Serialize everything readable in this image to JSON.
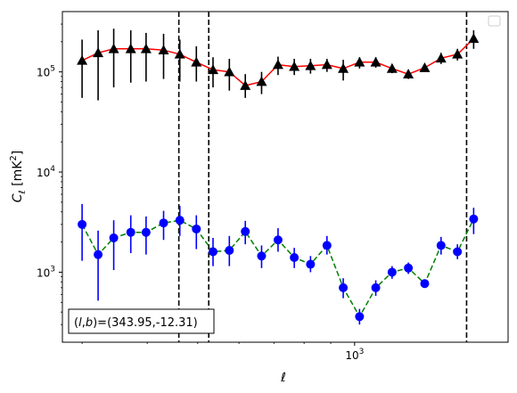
{
  "chart_data": {
    "type": "scatter",
    "title": "",
    "xlabel": "ℓ",
    "ylabel_main": "C",
    "ylabel_sub": "ℓ",
    "ylabel_unit_prefix": "[mK",
    "ylabel_unit_exp": "2",
    "ylabel_unit_suffix": "]",
    "xscale": "log",
    "yscale": "log",
    "xlim": [
      275,
      1970
    ],
    "ylim": [
      200,
      400000
    ],
    "x_ticks": [
      {
        "value": 1000,
        "base": "10",
        "exp": "3"
      }
    ],
    "y_ticks": [
      {
        "value": 1000,
        "base": "10",
        "exp": "3"
      },
      {
        "value": 10000,
        "base": "10",
        "exp": "4"
      },
      {
        "value": 100000,
        "base": "10",
        "exp": "5"
      }
    ],
    "grid": false,
    "legend": "top-right (empty)",
    "annotation": {
      "prefix": "(",
      "l": "l",
      "comma": ",",
      "b": "b",
      "suffix": ")=(343.95,-12.31)"
    },
    "vlines": [
      460,
      525,
      1640
    ],
    "series": [
      {
        "marker": "triangle",
        "color": "#000000",
        "line_color": "#ff0000",
        "line_style": "solid",
        "points": [
          {
            "x": 300,
            "y": 130000,
            "lo": 55000,
            "hi": 210000
          },
          {
            "x": 322,
            "y": 155000,
            "lo": 52000,
            "hi": 260000
          },
          {
            "x": 345,
            "y": 170000,
            "lo": 70000,
            "hi": 270000
          },
          {
            "x": 372,
            "y": 170000,
            "lo": 78000,
            "hi": 260000
          },
          {
            "x": 398,
            "y": 170000,
            "lo": 80000,
            "hi": 245000
          },
          {
            "x": 430,
            "y": 165000,
            "lo": 85000,
            "hi": 240000
          },
          {
            "x": 462,
            "y": 150000,
            "lo": 80000,
            "hi": 210000
          },
          {
            "x": 497,
            "y": 125000,
            "lo": 80000,
            "hi": 180000
          },
          {
            "x": 535,
            "y": 105000,
            "lo": 70000,
            "hi": 140000
          },
          {
            "x": 575,
            "y": 100000,
            "lo": 65000,
            "hi": 135000
          },
          {
            "x": 617,
            "y": 73000,
            "lo": 55000,
            "hi": 95000
          },
          {
            "x": 663,
            "y": 80000,
            "lo": 60000,
            "hi": 100000
          },
          {
            "x": 713,
            "y": 118000,
            "lo": 93000,
            "hi": 142000
          },
          {
            "x": 766,
            "y": 113000,
            "lo": 93000,
            "hi": 135000
          },
          {
            "x": 823,
            "y": 115000,
            "lo": 96000,
            "hi": 135000
          },
          {
            "x": 885,
            "y": 118000,
            "lo": 100000,
            "hi": 135000
          },
          {
            "x": 951,
            "y": 108000,
            "lo": 82000,
            "hi": 132000
          },
          {
            "x": 1022,
            "y": 125000,
            "lo": 108000,
            "hi": 140000
          },
          {
            "x": 1098,
            "y": 125000,
            "lo": 110000,
            "hi": 140000
          },
          {
            "x": 1180,
            "y": 108000,
            "lo": 97000,
            "hi": 120000
          },
          {
            "x": 1268,
            "y": 95000,
            "lo": 85000,
            "hi": 105000
          },
          {
            "x": 1363,
            "y": 110000,
            "lo": 102000,
            "hi": 118000
          },
          {
            "x": 1465,
            "y": 137000,
            "lo": 120000,
            "hi": 155000
          },
          {
            "x": 1575,
            "y": 150000,
            "lo": 130000,
            "hi": 170000
          },
          {
            "x": 1692,
            "y": 215000,
            "lo": 170000,
            "hi": 260000
          }
        ]
      },
      {
        "marker": "circle",
        "color": "#0000ff",
        "line_color": "#008000",
        "line_style": "dashed",
        "points": [
          {
            "x": 300,
            "y": 3000,
            "lo": 1300,
            "hi": 4800
          },
          {
            "x": 322,
            "y": 1500,
            "lo": 520,
            "hi": 2600
          },
          {
            "x": 345,
            "y": 2200,
            "lo": 1050,
            "hi": 3300
          },
          {
            "x": 372,
            "y": 2500,
            "lo": 1550,
            "hi": 3700
          },
          {
            "x": 398,
            "y": 2500,
            "lo": 1500,
            "hi": 3600
          },
          {
            "x": 430,
            "y": 3100,
            "lo": 2100,
            "hi": 4100
          },
          {
            "x": 462,
            "y": 3300,
            "lo": 2300,
            "hi": 4600
          },
          {
            "x": 497,
            "y": 2700,
            "lo": 1700,
            "hi": 3700
          },
          {
            "x": 535,
            "y": 1600,
            "lo": 1150,
            "hi": 2200
          },
          {
            "x": 575,
            "y": 1650,
            "lo": 1150,
            "hi": 2300
          },
          {
            "x": 617,
            "y": 2550,
            "lo": 1900,
            "hi": 3250
          },
          {
            "x": 663,
            "y": 1450,
            "lo": 1100,
            "hi": 1850
          },
          {
            "x": 713,
            "y": 2100,
            "lo": 1600,
            "hi": 2750
          },
          {
            "x": 766,
            "y": 1400,
            "lo": 1100,
            "hi": 1750
          },
          {
            "x": 823,
            "y": 1200,
            "lo": 1000,
            "hi": 1450
          },
          {
            "x": 885,
            "y": 1850,
            "lo": 1500,
            "hi": 2300
          },
          {
            "x": 951,
            "y": 700,
            "lo": 550,
            "hi": 870
          },
          {
            "x": 1022,
            "y": 360,
            "lo": 300,
            "hi": 430
          },
          {
            "x": 1098,
            "y": 700,
            "lo": 580,
            "hi": 830
          },
          {
            "x": 1180,
            "y": 1000,
            "lo": 860,
            "hi": 1150
          },
          {
            "x": 1268,
            "y": 1100,
            "lo": 960,
            "hi": 1250
          },
          {
            "x": 1363,
            "y": 770,
            "lo": 700,
            "hi": 850
          },
          {
            "x": 1465,
            "y": 1850,
            "lo": 1500,
            "hi": 2250
          },
          {
            "x": 1575,
            "y": 1600,
            "lo": 1350,
            "hi": 1900
          },
          {
            "x": 1692,
            "y": 3400,
            "lo": 2400,
            "hi": 4400
          }
        ]
      }
    ]
  }
}
